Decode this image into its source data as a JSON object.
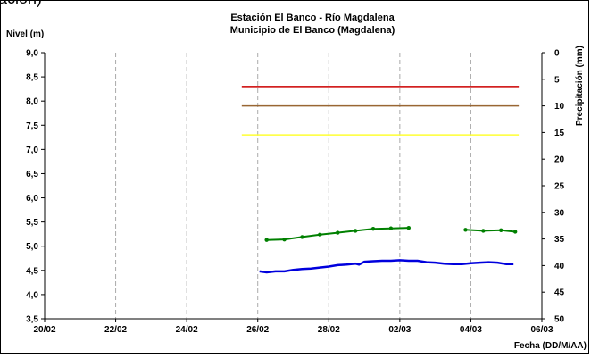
{
  "top_fragment": "ación)",
  "chart_data": {
    "type": "line",
    "title": "Estación El Banco - Río Magdalena",
    "subtitle": "Municipio de El Banco (Magdalena)",
    "ylabel": "Nivel (m)",
    "y2label": "Precipitación (mm)",
    "xlabel": "Fecha (DD/M/AA)",
    "x_ticks": [
      "20/02",
      "22/02",
      "24/02",
      "26/02",
      "28/02",
      "02/03",
      "04/03",
      "06/03"
    ],
    "x_range_days": [
      0,
      14
    ],
    "ylim": [
      3.5,
      9.0
    ],
    "y_ticks": [
      "3,5",
      "4,0",
      "4,5",
      "5,0",
      "5,5",
      "6,0",
      "6,5",
      "7,0",
      "7,5",
      "8,0",
      "8,5",
      "9,0"
    ],
    "y2lim": [
      50,
      0
    ],
    "y2_ticks": [
      "0",
      "5",
      "10",
      "15",
      "20",
      "25",
      "30",
      "35",
      "40",
      "45",
      "50"
    ],
    "grid": "vertical",
    "thresholds": [
      {
        "color": "#cc0000",
        "y": 8.3,
        "x_start": 5.55,
        "x_end": 13.35
      },
      {
        "color": "#996633",
        "y": 7.9,
        "x_start": 5.55,
        "x_end": 13.35
      },
      {
        "color": "#ffff33",
        "y": 7.3,
        "x_start": 5.55,
        "x_end": 13.35
      }
    ],
    "series": [
      {
        "color": "#0000dd",
        "marker": false,
        "points": [
          [
            6.05,
            4.48
          ],
          [
            6.25,
            4.46
          ],
          [
            6.5,
            4.48
          ],
          [
            6.75,
            4.48
          ],
          [
            7.0,
            4.51
          ],
          [
            7.25,
            4.53
          ],
          [
            7.5,
            4.54
          ],
          [
            7.75,
            4.56
          ],
          [
            8.0,
            4.58
          ],
          [
            8.25,
            4.61
          ],
          [
            8.5,
            4.62
          ],
          [
            8.75,
            4.64
          ],
          [
            8.85,
            4.62
          ],
          [
            9.0,
            4.68
          ],
          [
            9.25,
            4.69
          ],
          [
            9.5,
            4.7
          ],
          [
            9.75,
            4.7
          ],
          [
            10.0,
            4.71
          ],
          [
            10.25,
            4.7
          ],
          [
            10.5,
            4.7
          ],
          [
            10.75,
            4.67
          ],
          [
            11.0,
            4.66
          ],
          [
            11.25,
            4.64
          ],
          [
            11.5,
            4.63
          ],
          [
            11.75,
            4.63
          ],
          [
            12.0,
            4.65
          ],
          [
            12.25,
            4.66
          ],
          [
            12.5,
            4.67
          ],
          [
            12.75,
            4.66
          ],
          [
            13.0,
            4.63
          ],
          [
            13.2,
            4.63
          ]
        ]
      },
      {
        "color": "#008000",
        "marker": true,
        "segments": [
          [
            [
              6.25,
              5.13
            ],
            [
              6.75,
              5.14
            ],
            [
              7.25,
              5.19
            ],
            [
              7.75,
              5.24
            ],
            [
              8.25,
              5.28
            ],
            [
              8.75,
              5.32
            ],
            [
              9.25,
              5.36
            ],
            [
              9.75,
              5.37
            ],
            [
              10.25,
              5.38
            ]
          ],
          [
            [
              11.85,
              5.34
            ],
            [
              12.35,
              5.32
            ],
            [
              12.85,
              5.33
            ],
            [
              13.25,
              5.3
            ]
          ]
        ]
      }
    ]
  }
}
